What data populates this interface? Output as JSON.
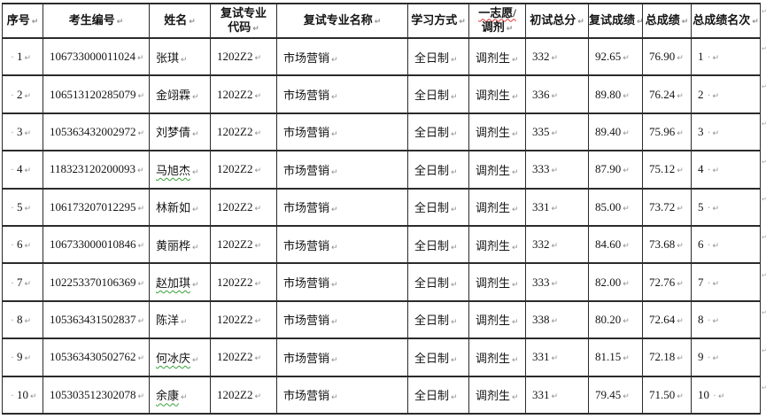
{
  "table": {
    "border_color": "#2b2b2b",
    "text_color": "#141414",
    "spellcheck_red": "#e03131",
    "spellcheck_green": "#3aa13a",
    "marks": {
      "space": "·",
      "cell_end": "↵"
    },
    "columns": [
      {
        "key": "idx",
        "lines": [
          "序号"
        ]
      },
      {
        "key": "candidate_no",
        "lines": [
          "考生编号"
        ]
      },
      {
        "key": "name",
        "lines": [
          "姓名"
        ]
      },
      {
        "key": "major_code",
        "lines": [
          "复试专业",
          "代码"
        ]
      },
      {
        "key": "major_name",
        "lines": [
          "复试专业名称"
        ]
      },
      {
        "key": "study_mode",
        "lines": [
          "学习方式"
        ]
      },
      {
        "key": "admission_type",
        "lines": [
          "一志愿/",
          "调剂"
        ],
        "spellcheck_line": 0
      },
      {
        "key": "initial_score",
        "lines": [
          "初试总分"
        ]
      },
      {
        "key": "retest_score",
        "lines": [
          "复试成绩"
        ]
      },
      {
        "key": "total_score",
        "lines": [
          "总成绩"
        ]
      },
      {
        "key": "rank",
        "lines": [
          "总成绩名次"
        ]
      }
    ],
    "rows": [
      {
        "idx": "1",
        "candidate_no": "106733000011024",
        "name": "张琪",
        "name_spellcheck": false,
        "major_code": "1202Z2",
        "major_name": "市场营销",
        "study_mode": "全日制",
        "admission_type": "调剂生",
        "initial_score": "332",
        "retest_score": "92.65",
        "total_score": "76.90",
        "rank": "1"
      },
      {
        "idx": "2",
        "candidate_no": "106513120285079",
        "name": "金翊霖",
        "name_spellcheck": false,
        "major_code": "1202Z2",
        "major_name": "市场营销",
        "study_mode": "全日制",
        "admission_type": "调剂生",
        "initial_score": "336",
        "retest_score": "89.80",
        "total_score": "76.24",
        "rank": "2"
      },
      {
        "idx": "3",
        "candidate_no": "105363432002972",
        "name": "刘梦倩",
        "name_spellcheck": false,
        "major_code": "1202Z2",
        "major_name": "市场营销",
        "study_mode": "全日制",
        "admission_type": "调剂生",
        "initial_score": "335",
        "retest_score": "89.40",
        "total_score": "75.96",
        "rank": "3"
      },
      {
        "idx": "4",
        "candidate_no": "118323120200093",
        "name": "马旭杰",
        "name_spellcheck": true,
        "major_code": "1202Z2",
        "major_name": "市场营销",
        "study_mode": "全日制",
        "admission_type": "调剂生",
        "initial_score": "333",
        "retest_score": "87.90",
        "total_score": "75.12",
        "rank": "4"
      },
      {
        "idx": "5",
        "candidate_no": "106173207012295",
        "name": "林新如",
        "name_spellcheck": false,
        "major_code": "1202Z2",
        "major_name": "市场营销",
        "study_mode": "全日制",
        "admission_type": "调剂生",
        "initial_score": "331",
        "retest_score": "85.00",
        "total_score": "73.72",
        "rank": "5"
      },
      {
        "idx": "6",
        "candidate_no": "106733000010846",
        "name": "黄丽桦",
        "name_spellcheck": false,
        "major_code": "1202Z2",
        "major_name": "市场营销",
        "study_mode": "全日制",
        "admission_type": "调剂生",
        "initial_score": "332",
        "retest_score": "84.60",
        "total_score": "73.68",
        "rank": "6"
      },
      {
        "idx": "7",
        "candidate_no": "102253370106369",
        "name": "赵加琪",
        "name_spellcheck": true,
        "major_code": "1202Z2",
        "major_name": "市场营销",
        "study_mode": "全日制",
        "admission_type": "调剂生",
        "initial_score": "333",
        "retest_score": "82.00",
        "total_score": "72.76",
        "rank": "7"
      },
      {
        "idx": "8",
        "candidate_no": "105363431502837",
        "name": "陈洋",
        "name_spellcheck": false,
        "major_code": "1202Z2",
        "major_name": "市场营销",
        "study_mode": "全日制",
        "admission_type": "调剂生",
        "initial_score": "338",
        "retest_score": "80.20",
        "total_score": "72.64",
        "rank": "8"
      },
      {
        "idx": "9",
        "candidate_no": "105363430502762",
        "name": "何冰庆",
        "name_spellcheck": true,
        "major_code": "1202Z2",
        "major_name": "市场营销",
        "study_mode": "全日制",
        "admission_type": "调剂生",
        "initial_score": "331",
        "retest_score": "81.15",
        "total_score": "72.18",
        "rank": "9"
      },
      {
        "idx": "10",
        "candidate_no": "105303512302078",
        "name": "余康",
        "name_spellcheck": true,
        "major_code": "1202Z2",
        "major_name": "市场营销",
        "study_mode": "全日制",
        "admission_type": "调剂生",
        "initial_score": "331",
        "retest_score": "79.45",
        "total_score": "71.50",
        "rank": "10"
      }
    ]
  }
}
